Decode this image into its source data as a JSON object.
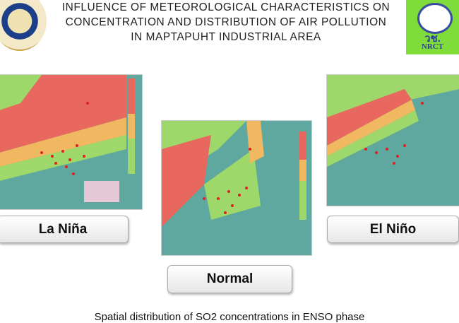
{
  "header": {
    "title_lines": [
      "INFLUENCE OF METEOROLOGICAL CHARACTERISTICS ON",
      "CONCENTRATION AND DISTRIBUTION OF AIR POLLUTION",
      "IN MAPTAPUHT INDUSTRIAL AREA"
    ]
  },
  "logos": {
    "right_th": "วช.",
    "right_en": "NRCT"
  },
  "panels": [
    {
      "label": "La Niña"
    },
    {
      "label": "Normal"
    },
    {
      "label": "El Niño"
    }
  ],
  "caption": "Spatial distribution of SO2 concentrations in ENSO phase",
  "colors": {
    "high": "#e8675f",
    "mid": "#f0b860",
    "low": "#9fd86a",
    "lowest": "#5fa8a0",
    "point": "#e02020"
  }
}
